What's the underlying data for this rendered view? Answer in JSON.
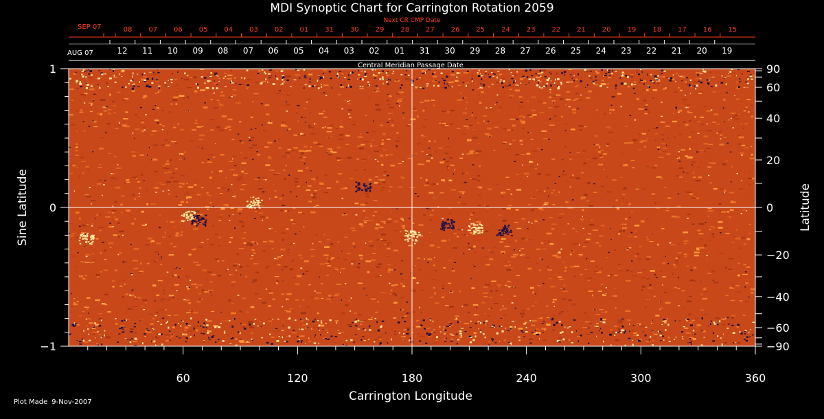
{
  "chart_data": {
    "type": "heatmap",
    "title": "MDI Synoptic Chart for Carrington Rotation 2059",
    "xlabel": "Carrington Longitude",
    "ylabel_left": "Sine Latitude",
    "ylabel_right": "Latitude",
    "xlim": [
      0,
      360
    ],
    "ylim": [
      -1,
      1
    ],
    "x_ticks": [
      60,
      120,
      180,
      240,
      300,
      360
    ],
    "y_ticks_left": [
      {
        "value": 1,
        "label": "1"
      },
      {
        "value": 0,
        "label": "0"
      },
      {
        "value": -1,
        "label": "−1"
      }
    ],
    "y_ticks_right": [
      {
        "deg": 90,
        "label": "90"
      },
      {
        "deg": 60,
        "label": "60"
      },
      {
        "deg": 40,
        "label": "40"
      },
      {
        "deg": 20,
        "label": "20"
      },
      {
        "deg": 0,
        "label": "0"
      },
      {
        "deg": -20,
        "label": "−20"
      },
      {
        "deg": -40,
        "label": "−40"
      },
      {
        "deg": -60,
        "label": "−60"
      },
      {
        "deg": -90,
        "label": "−90"
      }
    ],
    "grid_lines": {
      "x": [
        180
      ],
      "y": [
        0
      ]
    },
    "top_axis_red": {
      "label": "Next CR CMP Date",
      "month_label": "SEP 07",
      "days": [
        "08",
        "07",
        "06",
        "05",
        "04",
        "03",
        "02",
        "01",
        "31",
        "30",
        "29",
        "28",
        "27",
        "26",
        "25",
        "24",
        "23",
        "22",
        "21",
        "20",
        "19",
        "18",
        "17",
        "16",
        "15"
      ]
    },
    "top_axis_white": {
      "label": "Central Meridian Passage Date",
      "month_label": "AUG 07",
      "days": [
        "12",
        "11",
        "10",
        "09",
        "08",
        "07",
        "06",
        "05",
        "04",
        "03",
        "02",
        "01",
        "31",
        "30",
        "29",
        "28",
        "27",
        "26",
        "25",
        "24",
        "23",
        "22",
        "21",
        "20",
        "19"
      ]
    },
    "colors": {
      "background": "#000000",
      "map_base": "#d2501b",
      "positive": "#ffe8a0",
      "negative": "#1c1046",
      "red_axis": "#ff3c1e",
      "text": "#ffffff"
    }
  },
  "footer": {
    "prefix": "Plot Made",
    "date": "9-Nov-2007"
  }
}
